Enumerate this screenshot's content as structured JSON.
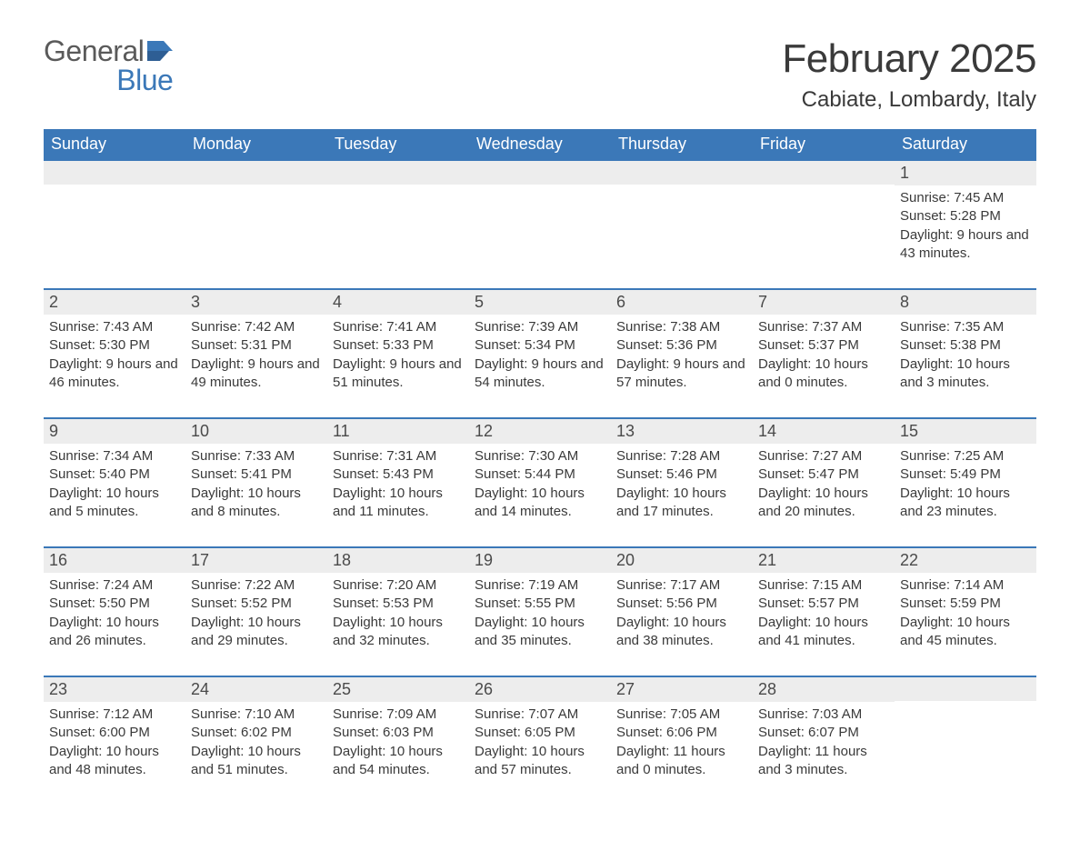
{
  "brand": {
    "word1": "General",
    "word2": "Blue",
    "color_general": "#5a5a5a",
    "color_blue": "#3b78b8"
  },
  "title": "February 2025",
  "location": "Cabiate, Lombardy, Italy",
  "colors": {
    "header_bg": "#3b78b8",
    "header_text": "#ffffff",
    "daynum_bg": "#ededed",
    "row_border": "#3b78b8",
    "body_text": "#3a3a3a",
    "page_bg": "#ffffff"
  },
  "typography": {
    "title_fontsize": 44,
    "location_fontsize": 24,
    "dayhead_fontsize": 18,
    "daynum_fontsize": 18,
    "body_fontsize": 15,
    "font_family": "Arial"
  },
  "day_headers": [
    "Sunday",
    "Monday",
    "Tuesday",
    "Wednesday",
    "Thursday",
    "Friday",
    "Saturday"
  ],
  "labels": {
    "sunrise": "Sunrise:",
    "sunset": "Sunset:",
    "daylight": "Daylight:"
  },
  "weeks": [
    [
      {
        "empty": true
      },
      {
        "empty": true
      },
      {
        "empty": true
      },
      {
        "empty": true
      },
      {
        "empty": true
      },
      {
        "empty": true
      },
      {
        "day": "1",
        "sunrise": "7:45 AM",
        "sunset": "5:28 PM",
        "daylight": "9 hours and 43 minutes."
      }
    ],
    [
      {
        "day": "2",
        "sunrise": "7:43 AM",
        "sunset": "5:30 PM",
        "daylight": "9 hours and 46 minutes."
      },
      {
        "day": "3",
        "sunrise": "7:42 AM",
        "sunset": "5:31 PM",
        "daylight": "9 hours and 49 minutes."
      },
      {
        "day": "4",
        "sunrise": "7:41 AM",
        "sunset": "5:33 PM",
        "daylight": "9 hours and 51 minutes."
      },
      {
        "day": "5",
        "sunrise": "7:39 AM",
        "sunset": "5:34 PM",
        "daylight": "9 hours and 54 minutes."
      },
      {
        "day": "6",
        "sunrise": "7:38 AM",
        "sunset": "5:36 PM",
        "daylight": "9 hours and 57 minutes."
      },
      {
        "day": "7",
        "sunrise": "7:37 AM",
        "sunset": "5:37 PM",
        "daylight": "10 hours and 0 minutes."
      },
      {
        "day": "8",
        "sunrise": "7:35 AM",
        "sunset": "5:38 PM",
        "daylight": "10 hours and 3 minutes."
      }
    ],
    [
      {
        "day": "9",
        "sunrise": "7:34 AM",
        "sunset": "5:40 PM",
        "daylight": "10 hours and 5 minutes."
      },
      {
        "day": "10",
        "sunrise": "7:33 AM",
        "sunset": "5:41 PM",
        "daylight": "10 hours and 8 minutes."
      },
      {
        "day": "11",
        "sunrise": "7:31 AM",
        "sunset": "5:43 PM",
        "daylight": "10 hours and 11 minutes."
      },
      {
        "day": "12",
        "sunrise": "7:30 AM",
        "sunset": "5:44 PM",
        "daylight": "10 hours and 14 minutes."
      },
      {
        "day": "13",
        "sunrise": "7:28 AM",
        "sunset": "5:46 PM",
        "daylight": "10 hours and 17 minutes."
      },
      {
        "day": "14",
        "sunrise": "7:27 AM",
        "sunset": "5:47 PM",
        "daylight": "10 hours and 20 minutes."
      },
      {
        "day": "15",
        "sunrise": "7:25 AM",
        "sunset": "5:49 PM",
        "daylight": "10 hours and 23 minutes."
      }
    ],
    [
      {
        "day": "16",
        "sunrise": "7:24 AM",
        "sunset": "5:50 PM",
        "daylight": "10 hours and 26 minutes."
      },
      {
        "day": "17",
        "sunrise": "7:22 AM",
        "sunset": "5:52 PM",
        "daylight": "10 hours and 29 minutes."
      },
      {
        "day": "18",
        "sunrise": "7:20 AM",
        "sunset": "5:53 PM",
        "daylight": "10 hours and 32 minutes."
      },
      {
        "day": "19",
        "sunrise": "7:19 AM",
        "sunset": "5:55 PM",
        "daylight": "10 hours and 35 minutes."
      },
      {
        "day": "20",
        "sunrise": "7:17 AM",
        "sunset": "5:56 PM",
        "daylight": "10 hours and 38 minutes."
      },
      {
        "day": "21",
        "sunrise": "7:15 AM",
        "sunset": "5:57 PM",
        "daylight": "10 hours and 41 minutes."
      },
      {
        "day": "22",
        "sunrise": "7:14 AM",
        "sunset": "5:59 PM",
        "daylight": "10 hours and 45 minutes."
      }
    ],
    [
      {
        "day": "23",
        "sunrise": "7:12 AM",
        "sunset": "6:00 PM",
        "daylight": "10 hours and 48 minutes."
      },
      {
        "day": "24",
        "sunrise": "7:10 AM",
        "sunset": "6:02 PM",
        "daylight": "10 hours and 51 minutes."
      },
      {
        "day": "25",
        "sunrise": "7:09 AM",
        "sunset": "6:03 PM",
        "daylight": "10 hours and 54 minutes."
      },
      {
        "day": "26",
        "sunrise": "7:07 AM",
        "sunset": "6:05 PM",
        "daylight": "10 hours and 57 minutes."
      },
      {
        "day": "27",
        "sunrise": "7:05 AM",
        "sunset": "6:06 PM",
        "daylight": "11 hours and 0 minutes."
      },
      {
        "day": "28",
        "sunrise": "7:03 AM",
        "sunset": "6:07 PM",
        "daylight": "11 hours and 3 minutes."
      },
      {
        "empty": true
      }
    ]
  ]
}
